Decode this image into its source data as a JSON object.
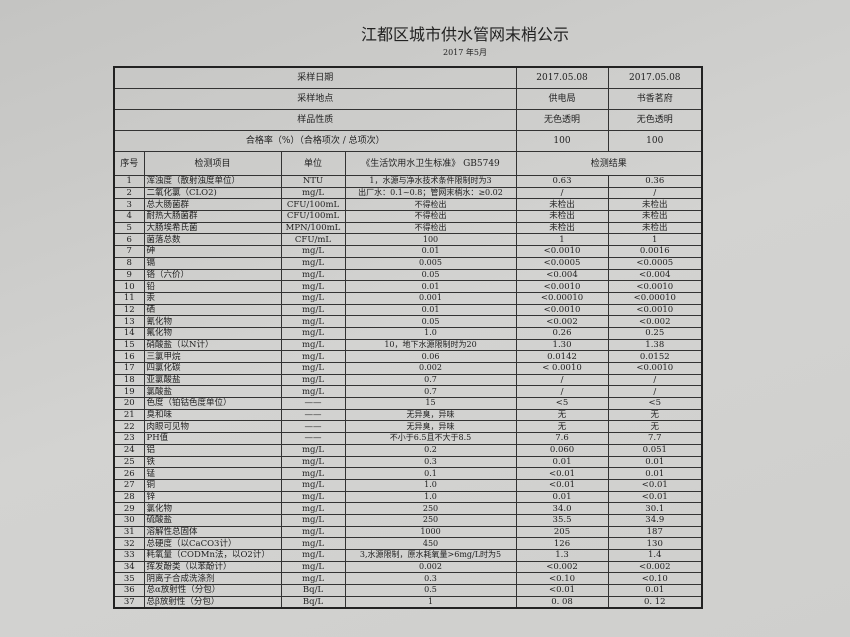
{
  "title": "江都区城市供水管网末梢公示",
  "subtitle": "2017 年5月",
  "summary": [
    {
      "label": "采样日期",
      "r1": "2017.05.08",
      "r2": "2017.05.08"
    },
    {
      "label": "采样地点",
      "r1": "供电局",
      "r2": "书香茗府"
    },
    {
      "label": "样品性质",
      "r1": "无色透明",
      "r2": "无色透明"
    },
    {
      "label": "合格率（%）（合格项次 / 总项次）",
      "r1": "100",
      "r2": "100"
    }
  ],
  "headers": {
    "no": "序号",
    "item": "检测项目",
    "unit": "单位",
    "std": "《生活饮用水卫生标准》 GB5749",
    "result": "检测结果"
  },
  "rows": [
    [
      "1",
      "浑浊度（散射浊度单位）",
      "NTU",
      "1，水源与净水技术条件限制时为3",
      "0.63",
      "0.36"
    ],
    [
      "2",
      "二氧化氯（CLO2)",
      "mg/L",
      "出厂水：0.1~0.8；管网末梢水：≥0.02",
      "/",
      "/"
    ],
    [
      "3",
      "总大肠菌群",
      "CFU/100mL",
      "不得检出",
      "未检出",
      "未检出"
    ],
    [
      "4",
      "耐热大肠菌群",
      "CFU/100mL",
      "不得检出",
      "未检出",
      "未检出"
    ],
    [
      "5",
      "大肠埃希氏菌",
      "MPN/100mL",
      "不得检出",
      "未检出",
      "未检出"
    ],
    [
      "6",
      "菌落总数",
      "CFU/mL",
      "100",
      "1",
      "1"
    ],
    [
      "7",
      "砷",
      "mg/L",
      "0.01",
      "<0.0010",
      "0.0016"
    ],
    [
      "8",
      "镉",
      "mg/L",
      "0.005",
      "<0.0005",
      "<0.0005"
    ],
    [
      "9",
      "铬（六价）",
      "mg/L",
      "0.05",
      "<0.004",
      "<0.004"
    ],
    [
      "10",
      "铅",
      "mg/L",
      "0.01",
      "<0.0010",
      "<0.0010"
    ],
    [
      "11",
      "汞",
      "mg/L",
      "0.001",
      "<0.00010",
      "<0.00010"
    ],
    [
      "12",
      "硒",
      "mg/L",
      "0.01",
      "<0.0010",
      "<0.0010"
    ],
    [
      "13",
      "氰化物",
      "mg/L",
      "0.05",
      "<0.002",
      "<0.002"
    ],
    [
      "14",
      "氟化物",
      "mg/L",
      "1.0",
      "0.26",
      "0.25"
    ],
    [
      "15",
      "硝酸盐（以N计）",
      "mg/L",
      "10，地下水源限制时为20",
      "1.30",
      "1.38"
    ],
    [
      "16",
      "三氯甲烷",
      "mg/L",
      "0.06",
      "0.0142",
      "0.0152"
    ],
    [
      "17",
      "四氯化碳",
      "mg/L",
      "0.002",
      "< 0.0010",
      "<0.0010"
    ],
    [
      "18",
      "亚氯酸盐",
      "mg/L",
      "0.7",
      "/",
      "/"
    ],
    [
      "19",
      "氯酸盐",
      "mg/L",
      "0.7",
      "/",
      "/"
    ],
    [
      "20",
      "色度（铂钴色度单位）",
      "——",
      "15",
      "<5",
      "<5"
    ],
    [
      "21",
      "臭和味",
      "——",
      "无异臭，异味",
      "无",
      "无"
    ],
    [
      "22",
      "肉眼可见物",
      "——",
      "无异臭，异味",
      "无",
      "无"
    ],
    [
      "23",
      "PH值",
      "——",
      "不小于6.5且不大于8.5",
      "7.6",
      "7.7"
    ],
    [
      "24",
      "铝",
      "mg/L",
      "0.2",
      "0.060",
      "0.051"
    ],
    [
      "25",
      "铁",
      "mg/L",
      "0.3",
      "0.01",
      "0.01"
    ],
    [
      "26",
      "锰",
      "mg/L",
      "0.1",
      "<0.01",
      "0.01"
    ],
    [
      "27",
      "铜",
      "mg/L",
      "1.0",
      "<0.01",
      "<0.01"
    ],
    [
      "28",
      "锌",
      "mg/L",
      "1.0",
      "0.01",
      "<0.01"
    ],
    [
      "29",
      "氯化物",
      "mg/L",
      "250",
      "34.0",
      "30.1"
    ],
    [
      "30",
      "硫酸盐",
      "mg/L",
      "250",
      "35.5",
      "34.9"
    ],
    [
      "31",
      "溶解性总固体",
      "mg/L",
      "1000",
      "205",
      "187"
    ],
    [
      "32",
      "总硬度（以CaCO3计）",
      "mg/L",
      "450",
      "126",
      "130"
    ],
    [
      "33",
      "耗氧量（CODMn法，以O2计）",
      "mg/L",
      "3,水源限制，原水耗氧量>6mg/L时为5",
      "1.3",
      "1.4"
    ],
    [
      "34",
      "挥发酚类（以苯酚计）",
      "mg/L",
      "0.002",
      "<0.002",
      "<0.002"
    ],
    [
      "35",
      "阴离子合成洗涤剂",
      "mg/L",
      "0.3",
      "<0.10",
      "<0.10"
    ],
    [
      "36",
      "总α放射性（分包）",
      "Bq/L",
      "0.5",
      "<0.01",
      "0.01"
    ],
    [
      "37",
      "总β放射性（分包）",
      "Bq/L",
      "1",
      "0. 08",
      "0. 12"
    ]
  ]
}
